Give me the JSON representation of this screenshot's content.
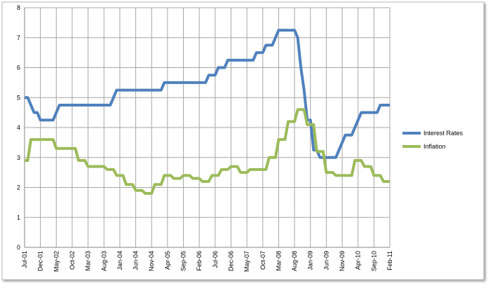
{
  "chart_data": {
    "type": "line",
    "categories": [
      "Jul-01",
      null,
      null,
      null,
      null,
      "Dec-01",
      null,
      null,
      null,
      null,
      "May-02",
      null,
      null,
      null,
      null,
      "Oct-02",
      null,
      null,
      null,
      null,
      "Mar-03",
      null,
      null,
      null,
      null,
      "Aug-03",
      null,
      null,
      null,
      null,
      "Jan-04",
      null,
      null,
      null,
      null,
      "Jun-04",
      null,
      null,
      null,
      null,
      "Nov-04",
      null,
      null,
      null,
      null,
      "Apr-05",
      null,
      null,
      null,
      null,
      "Sep-05",
      null,
      null,
      null,
      null,
      "Feb-06",
      null,
      null,
      null,
      null,
      "Jul-06",
      null,
      null,
      null,
      null,
      "Dec-06",
      null,
      null,
      null,
      null,
      "May-07",
      null,
      null,
      null,
      null,
      "Oct-07",
      null,
      null,
      null,
      null,
      "Mar-08",
      null,
      null,
      null,
      null,
      "Aug-08",
      null,
      null,
      null,
      null,
      "Jan-09",
      null,
      null,
      null,
      null,
      "Jun-09",
      null,
      null,
      null,
      null,
      "Nov-09",
      null,
      null,
      null,
      null,
      "Apr-10",
      null,
      null,
      null,
      null,
      "Sep-10",
      null,
      null,
      null,
      null,
      "Feb-11"
    ],
    "series": [
      {
        "name": "Interest Rates",
        "color": "#4f81bd",
        "values": [
          5,
          5,
          4.75,
          4.5,
          4.5,
          4.25,
          4.25,
          4.25,
          4.25,
          4.25,
          4.5,
          4.75,
          4.75,
          4.75,
          4.75,
          4.75,
          4.75,
          4.75,
          4.75,
          4.75,
          4.75,
          4.75,
          4.75,
          4.75,
          4.75,
          4.75,
          4.75,
          4.75,
          5,
          5.25,
          5.25,
          5.25,
          5.25,
          5.25,
          5.25,
          5.25,
          5.25,
          5.25,
          5.25,
          5.25,
          5.25,
          5.25,
          5.25,
          5.25,
          5.5,
          5.5,
          5.5,
          5.5,
          5.5,
          5.5,
          5.5,
          5.5,
          5.5,
          5.5,
          5.5,
          5.5,
          5.5,
          5.5,
          5.75,
          5.75,
          5.75,
          6,
          6,
          6,
          6.25,
          6.25,
          6.25,
          6.25,
          6.25,
          6.25,
          6.25,
          6.25,
          6.25,
          6.5,
          6.5,
          6.5,
          6.75,
          6.75,
          6.75,
          7,
          7.25,
          7.25,
          7.25,
          7.25,
          7.25,
          7.25,
          7,
          6,
          5.25,
          4.25,
          4.25,
          3.25,
          3.25,
          3,
          3,
          3,
          3,
          3,
          3,
          3.25,
          3.5,
          3.75,
          3.75,
          3.75,
          4,
          4.25,
          4.5,
          4.5,
          4.5,
          4.5,
          4.5,
          4.5,
          4.75,
          4.75,
          4.75,
          4.75
        ]
      },
      {
        "name": "Inflation",
        "color": "#9bbb59",
        "values": [
          2.9,
          2.9,
          3.6,
          3.6,
          3.6,
          3.6,
          3.6,
          3.6,
          3.6,
          3.6,
          3.3,
          3.3,
          3.3,
          3.3,
          3.3,
          3.3,
          3.3,
          2.9,
          2.9,
          2.9,
          2.7,
          2.7,
          2.7,
          2.7,
          2.7,
          2.7,
          2.6,
          2.6,
          2.6,
          2.4,
          2.4,
          2.4,
          2.1,
          2.1,
          2.1,
          1.9,
          1.9,
          1.9,
          1.8,
          1.8,
          1.8,
          2.1,
          2.1,
          2.1,
          2.4,
          2.4,
          2.4,
          2.3,
          2.3,
          2.3,
          2.4,
          2.4,
          2.4,
          2.3,
          2.3,
          2.3,
          2.2,
          2.2,
          2.2,
          2.4,
          2.4,
          2.4,
          2.6,
          2.6,
          2.6,
          2.7,
          2.7,
          2.7,
          2.5,
          2.5,
          2.5,
          2.6,
          2.6,
          2.6,
          2.6,
          2.6,
          2.6,
          3,
          3,
          3,
          3.6,
          3.6,
          3.6,
          4.2,
          4.2,
          4.2,
          4.6,
          4.6,
          4.6,
          4.1,
          4.1,
          4.1,
          3.2,
          3.2,
          3.2,
          2.5,
          2.5,
          2.5,
          2.4,
          2.4,
          2.4,
          2.4,
          2.4,
          2.4,
          2.9,
          2.9,
          2.9,
          2.7,
          2.7,
          2.7,
          2.4,
          2.4,
          2.4,
          2.2,
          2.2,
          2.2
        ]
      }
    ],
    "ylim": [
      0,
      8
    ],
    "yticks": [
      0,
      1,
      2,
      3,
      4,
      5,
      6,
      7,
      8
    ],
    "grid": true,
    "legend": "right"
  }
}
